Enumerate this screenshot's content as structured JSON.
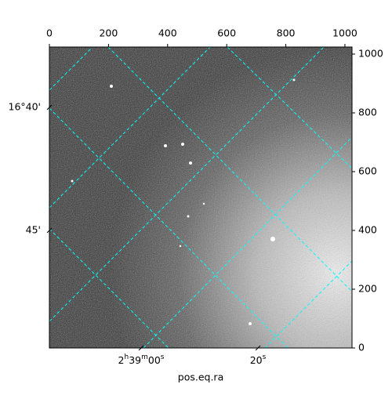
{
  "chart_data": {
    "type": "image",
    "xlabel": "pos.eq.ra",
    "xlim": [
      0,
      1024
    ],
    "ylim": [
      0,
      1024
    ],
    "xticks": [
      0,
      200,
      400,
      600,
      800,
      1000
    ],
    "yticks": [
      0,
      200,
      400,
      600,
      800,
      1000
    ],
    "world_x_ticks": [
      "2h39m00s",
      "20s"
    ],
    "world_y_ticks": [
      "16°40'",
      "45'"
    ],
    "grid_color": "#00ffff"
  }
}
